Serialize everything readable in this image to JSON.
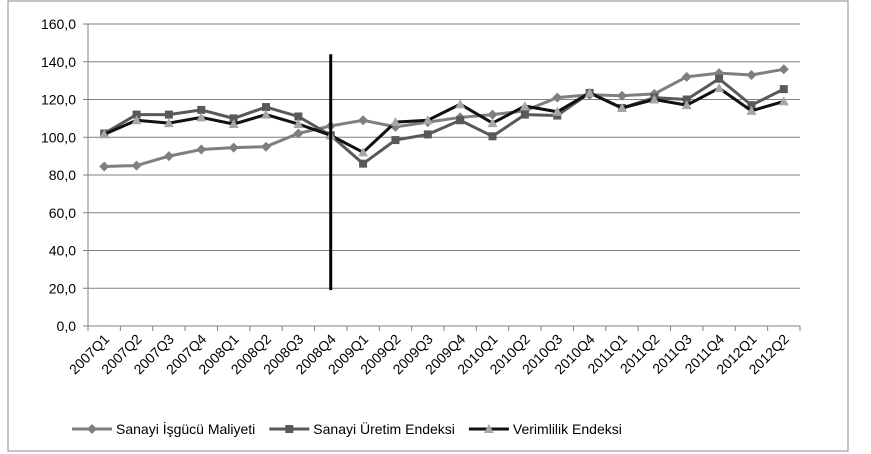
{
  "chart_data": {
    "type": "line",
    "categories": [
      "2007Q1",
      "2007Q2",
      "2007Q3",
      "2007Q4",
      "2008Q1",
      "2008Q2",
      "2008Q3",
      "2008Q4",
      "2009Q1",
      "2009Q2",
      "2009Q3",
      "2009Q4",
      "2010Q1",
      "2010Q2",
      "2010Q3",
      "2010Q4",
      "2011Q1",
      "2011Q2",
      "2011Q3",
      "2011Q4",
      "2012Q1",
      "2012Q2"
    ],
    "series": [
      {
        "name": "Sanayi İşgücü Maliyeti",
        "color": "#7f7f7f",
        "marker": "diamond",
        "marker_color": "#7f7f7f",
        "values": [
          84.5,
          85,
          90,
          93.5,
          94.5,
          95,
          102,
          106,
          109,
          105.5,
          108,
          110.5,
          112,
          114,
          121,
          122.5,
          122,
          123,
          132,
          134,
          133,
          136
        ]
      },
      {
        "name": "Sanayi Üretim Endeksi",
        "color": "#595959",
        "marker": "square",
        "marker_color": "#595959",
        "values": [
          102,
          112,
          112,
          114.5,
          110,
          116,
          111,
          101,
          86,
          98.5,
          101.5,
          109,
          100.5,
          112,
          111.5,
          123.5,
          115.5,
          121,
          120,
          131,
          117,
          125.5
        ]
      },
      {
        "name": "Verimlilik Endeksi",
        "color": "#111111",
        "marker": "triangle",
        "marker_color": "#a6a6a6",
        "values": [
          101.5,
          109,
          107.5,
          110.5,
          107,
          112,
          107,
          101,
          92,
          108,
          109,
          117.5,
          107.5,
          116.5,
          113.5,
          123.5,
          115.5,
          120,
          117,
          126,
          114,
          119
        ]
      }
    ],
    "reference_line": {
      "x": "2008Q4",
      "from": 19,
      "to": 144
    },
    "ylim": [
      0,
      160
    ],
    "yticks": [
      {
        "value": 0,
        "label": "0,0"
      },
      {
        "value": 20,
        "label": "20,0"
      },
      {
        "value": 40,
        "label": "40,0"
      },
      {
        "value": 60,
        "label": "60,0"
      },
      {
        "value": 80,
        "label": "80,0"
      },
      {
        "value": 100,
        "label": "100,0"
      },
      {
        "value": 120,
        "label": "120,0"
      },
      {
        "value": 140,
        "label": "140,0"
      },
      {
        "value": 160,
        "label": "160,0"
      }
    ],
    "grid": true,
    "legend": "bottom"
  }
}
